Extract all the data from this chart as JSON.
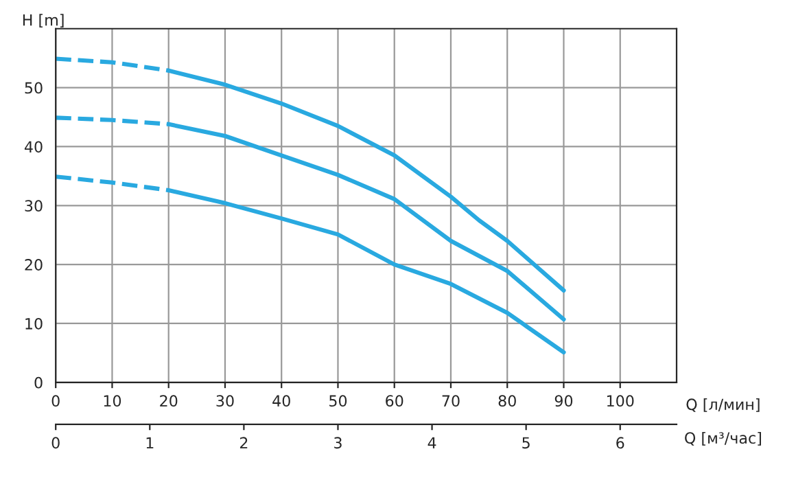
{
  "chart_data": {
    "type": "line",
    "ylabel": "H [m]",
    "xlabel": "Q [л/мин]",
    "x2label": "Q [м³/час]",
    "xlim": [
      0,
      110
    ],
    "xticks": [
      0,
      10,
      20,
      30,
      40,
      50,
      60,
      70,
      80,
      90,
      100
    ],
    "ylim": [
      0,
      60
    ],
    "yticks": [
      0,
      10,
      20,
      30,
      40,
      50
    ],
    "x2lim": [
      0,
      6.6
    ],
    "x2ticks": [
      0,
      1,
      2,
      3,
      4,
      5,
      6
    ],
    "grid": true,
    "legend": false,
    "series": [
      {
        "color": "#29a9e0",
        "line_style": "dashed",
        "x": [
          0,
          10,
          20
        ],
        "values": [
          54.9,
          54.3,
          52.9
        ]
      },
      {
        "color": "#29a9e0",
        "line_style": "solid",
        "x": [
          20,
          30,
          40,
          50,
          60,
          70,
          75,
          80,
          90
        ],
        "values": [
          52.9,
          50.5,
          47.3,
          43.5,
          38.5,
          31.5,
          27.5,
          24,
          15.6
        ]
      },
      {
        "color": "#29a9e0",
        "line_style": "dashed",
        "x": [
          0,
          10,
          20
        ],
        "values": [
          44.9,
          44.5,
          43.8
        ]
      },
      {
        "color": "#29a9e0",
        "line_style": "solid",
        "x": [
          20,
          30,
          40,
          50,
          60,
          70,
          80,
          90
        ],
        "values": [
          43.8,
          41.8,
          38.5,
          35.2,
          31.1,
          24,
          18.9,
          10.7
        ]
      },
      {
        "color": "#29a9e0",
        "line_style": "dashed",
        "x": [
          0,
          10,
          20
        ],
        "values": [
          34.9,
          33.9,
          32.6
        ]
      },
      {
        "color": "#29a9e0",
        "line_style": "solid",
        "x": [
          20,
          30,
          40,
          50,
          60,
          70,
          80,
          90
        ],
        "values": [
          32.6,
          30.4,
          27.8,
          25.1,
          20,
          16.7,
          11.8,
          5.1
        ]
      }
    ]
  }
}
